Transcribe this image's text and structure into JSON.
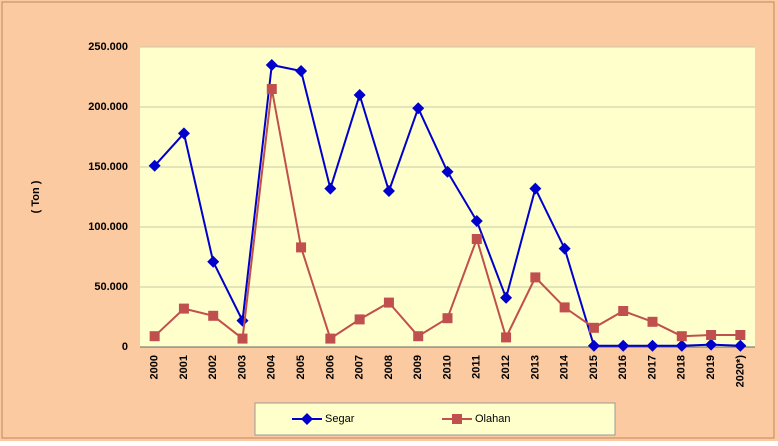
{
  "chart_data": {
    "type": "line",
    "y_label": "( Ton )",
    "categories": [
      "2000",
      "2001",
      "2002",
      "2003",
      "2004",
      "2005",
      "2006",
      "2007",
      "2008",
      "2009",
      "2010",
      "2011",
      "2012",
      "2013",
      "2014",
      "2015",
      "2016",
      "2017",
      "2018",
      "2019",
      "2020*)"
    ],
    "series": [
      {
        "name": "Segar",
        "color": "#0000cc",
        "marker": "diamond",
        "values": [
          151000,
          178000,
          71000,
          22000,
          235000,
          230000,
          132000,
          210000,
          130000,
          199000,
          146000,
          105000,
          41000,
          132000,
          82000,
          1000,
          1000,
          1000,
          1000,
          2000,
          1000
        ]
      },
      {
        "name": "Olahan",
        "color": "#c0504d",
        "marker": "square",
        "values": [
          9000,
          32000,
          26000,
          7000,
          215000,
          83000,
          7000,
          23000,
          37000,
          9000,
          24000,
          90000,
          8000,
          58000,
          33000,
          16000,
          30000,
          21000,
          9000,
          10000,
          10000
        ]
      }
    ],
    "ylim": [
      0,
      250000
    ],
    "yticks": [
      0,
      {
        "value": 50000,
        "label": "50.000"
      },
      {
        "value": 100000,
        "label": "100.000"
      },
      {
        "value": 150000,
        "label": "150.000"
      },
      {
        "value": 200000,
        "label": "200.000"
      },
      {
        "value": 250000,
        "label": "250.000"
      }
    ],
    "grid": true,
    "legend": "bottom"
  }
}
